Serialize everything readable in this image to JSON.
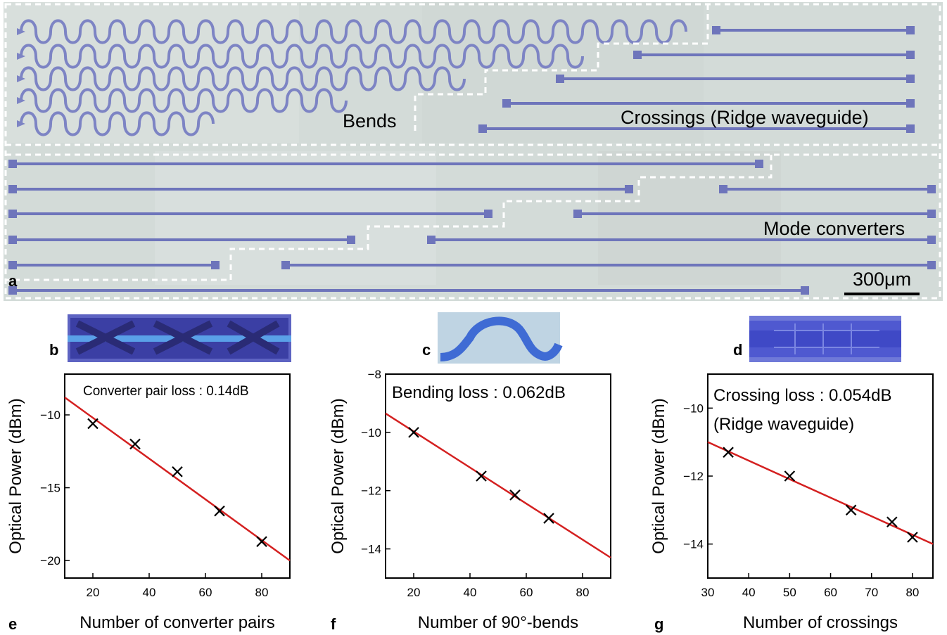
{
  "figure": {
    "panel_a": {
      "letter": "a",
      "labels": {
        "bends": "Bends",
        "crossings": "Crossings (Ridge waveguide)",
        "mode_converters": "Mode converters"
      },
      "scale_bar": "300μm"
    },
    "insets": {
      "b": "b",
      "c": "c",
      "d": "d"
    }
  },
  "colors": {
    "fit_line": "#d42020",
    "marker": "#000000",
    "substrate": "#d5dcd9",
    "waveguide": "#7d84c4",
    "dashed_box": "#ffffff"
  },
  "chart_data": [
    {
      "panel": "e",
      "type": "scatter",
      "xlabel": "Number of converter pairs",
      "ylabel": "Optical Power (dBm)",
      "xlim": [
        10,
        90
      ],
      "ylim": [
        -21.2,
        -7.2
      ],
      "xticks": [
        20,
        40,
        60,
        80
      ],
      "yticks": [
        -10,
        -15,
        -20
      ],
      "annotation": [
        "Converter pair loss : 0.14dB"
      ],
      "points": [
        [
          20,
          -10.6
        ],
        [
          35,
          -12.0
        ],
        [
          50,
          -13.9
        ],
        [
          65,
          -16.6
        ],
        [
          80,
          -18.7
        ]
      ],
      "fit": [
        [
          10,
          -8.8
        ],
        [
          90,
          -20.0
        ]
      ]
    },
    {
      "panel": "f",
      "type": "scatter",
      "xlabel": "Number of 90°-bends",
      "ylabel": "Optical Power (dBm)",
      "xlim": [
        10,
        90
      ],
      "ylim": [
        -15,
        -8
      ],
      "xticks": [
        20,
        40,
        60,
        80
      ],
      "yticks": [
        -8,
        -10,
        -12,
        -14
      ],
      "annotation": [
        "Bending loss : 0.062dB"
      ],
      "points": [
        [
          20,
          -10.0
        ],
        [
          44,
          -11.5
        ],
        [
          56,
          -12.15
        ],
        [
          68,
          -12.95
        ]
      ],
      "fit": [
        [
          10,
          -9.35
        ],
        [
          90,
          -14.3
        ]
      ]
    },
    {
      "panel": "g",
      "type": "scatter",
      "xlabel": "Number of crossings",
      "ylabel": "Optical Power (dBm)",
      "xlim": [
        30,
        85
      ],
      "ylim": [
        -15,
        -9
      ],
      "xticks": [
        30,
        40,
        50,
        60,
        70,
        80
      ],
      "yticks": [
        -10,
        -12,
        -14
      ],
      "annotation": [
        "Crossing loss : 0.054dB",
        "(Ridge waveguide)"
      ],
      "points": [
        [
          35,
          -11.3
        ],
        [
          50,
          -12.0
        ],
        [
          65,
          -13.0
        ],
        [
          75,
          -13.35
        ],
        [
          80,
          -13.8
        ]
      ],
      "fit": [
        [
          30,
          -11.0
        ],
        [
          85,
          -14.0
        ]
      ]
    }
  ]
}
